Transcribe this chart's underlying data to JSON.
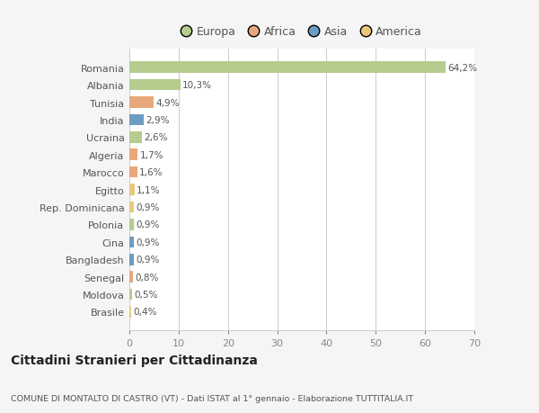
{
  "countries": [
    "Romania",
    "Albania",
    "Tunisia",
    "India",
    "Ucraina",
    "Algeria",
    "Marocco",
    "Egitto",
    "Rep. Dominicana",
    "Polonia",
    "Cina",
    "Bangladesh",
    "Senegal",
    "Moldova",
    "Brasile"
  ],
  "values": [
    64.2,
    10.3,
    4.9,
    2.9,
    2.6,
    1.7,
    1.6,
    1.1,
    0.9,
    0.9,
    0.9,
    0.9,
    0.8,
    0.5,
    0.4
  ],
  "labels": [
    "64,2%",
    "10,3%",
    "4,9%",
    "2,9%",
    "2,6%",
    "1,7%",
    "1,6%",
    "1,1%",
    "0,9%",
    "0,9%",
    "0,9%",
    "0,9%",
    "0,8%",
    "0,5%",
    "0,4%"
  ],
  "colors": [
    "#b5cc8e",
    "#b5cc8e",
    "#e8a87c",
    "#6b9dc2",
    "#b5cc8e",
    "#e8a87c",
    "#e8a87c",
    "#e8c97c",
    "#e8c97c",
    "#b5cc8e",
    "#6b9dc2",
    "#6b9dc2",
    "#e8a87c",
    "#b5cc8e",
    "#e8c97c"
  ],
  "legend_labels": [
    "Europa",
    "Africa",
    "Asia",
    "America"
  ],
  "legend_colors": [
    "#b5cc8e",
    "#e8a87c",
    "#6b9dc2",
    "#e8c97c"
  ],
  "xlim": [
    0,
    70
  ],
  "xticks": [
    0,
    10,
    20,
    30,
    40,
    50,
    60,
    70
  ],
  "title": "Cittadini Stranieri per Cittadinanza",
  "subtitle": "COMUNE DI MONTALTO DI CASTRO (VT) - Dati ISTAT al 1° gennaio - Elaborazione TUTTITALIA.IT",
  "background_color": "#f5f5f5",
  "bar_background": "#ffffff",
  "text_color": "#555555",
  "grid_color": "#cccccc",
  "bar_height": 0.65
}
